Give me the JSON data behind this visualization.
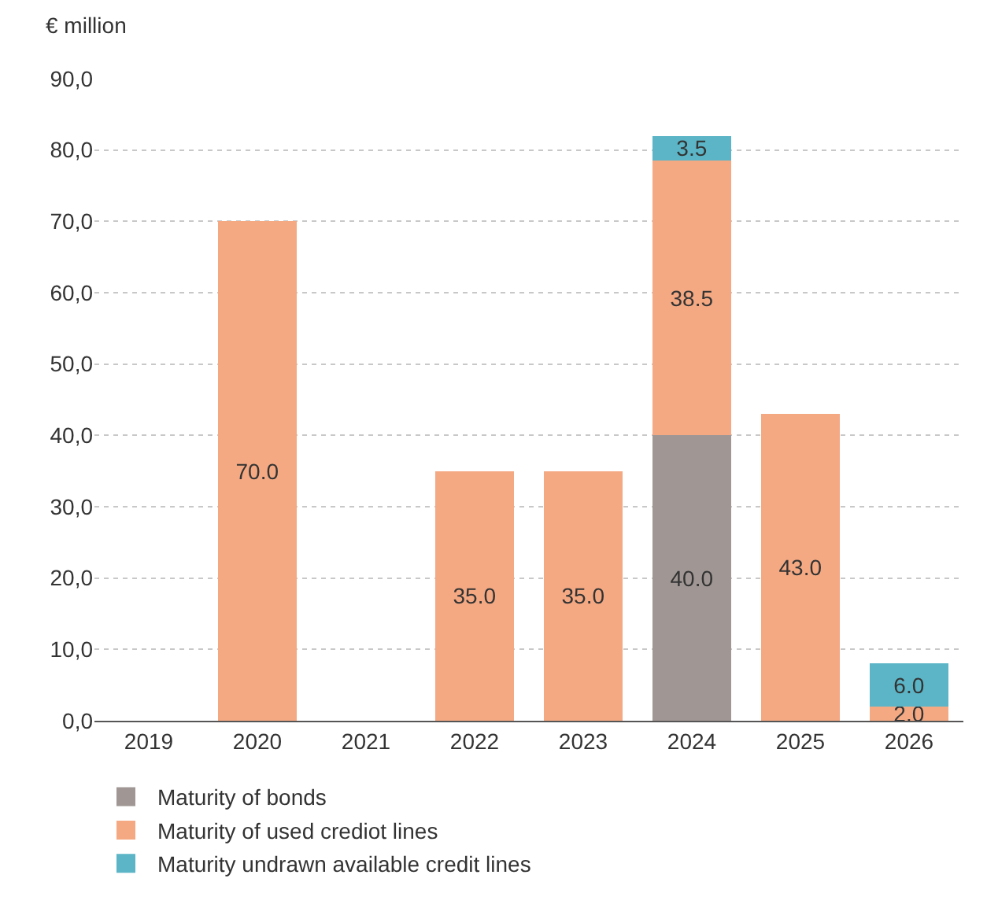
{
  "chart_data": {
    "type": "bar",
    "ylabel": "€ million",
    "stacked": true,
    "categories": [
      "2019",
      "2020",
      "2021",
      "2022",
      "2023",
      "2024",
      "2025",
      "2026"
    ],
    "series": [
      {
        "name": "Maturity of bonds",
        "color": "#a09794",
        "values": [
          0,
          0,
          0,
          0,
          0,
          40,
          0,
          0
        ],
        "value_labels": [
          null,
          null,
          null,
          null,
          null,
          "40.0",
          null,
          null
        ]
      },
      {
        "name": "Maturity of used crediot lines",
        "color": "#f4a983",
        "values": [
          0,
          70,
          0,
          35,
          35,
          38.5,
          43,
          2
        ],
        "value_labels": [
          null,
          "70.0",
          null,
          "35.0",
          "35.0",
          "38.5",
          "43.0",
          "2.0"
        ]
      },
      {
        "name": "Maturity undrawn available credit lines",
        "color": "#5bb5c6",
        "values": [
          0,
          0,
          0,
          0,
          0,
          3.5,
          0,
          6
        ],
        "value_labels": [
          null,
          null,
          null,
          null,
          null,
          "3.5",
          null,
          "6.0"
        ]
      }
    ],
    "ylim": [
      0,
      90
    ],
    "yticks": [
      {
        "value": 0,
        "label": "0,0"
      },
      {
        "value": 10,
        "label": "10,0"
      },
      {
        "value": 20,
        "label": "20,0"
      },
      {
        "value": 30,
        "label": "30,0"
      },
      {
        "value": 40,
        "label": "40,0"
      },
      {
        "value": 50,
        "label": "50,0"
      },
      {
        "value": 60,
        "label": "60,0"
      },
      {
        "value": 70,
        "label": "70,0"
      },
      {
        "value": 80,
        "label": "80,0"
      },
      {
        "value": 90,
        "label": "90,0"
      }
    ],
    "grid": "y",
    "legend": "bottom left"
  }
}
